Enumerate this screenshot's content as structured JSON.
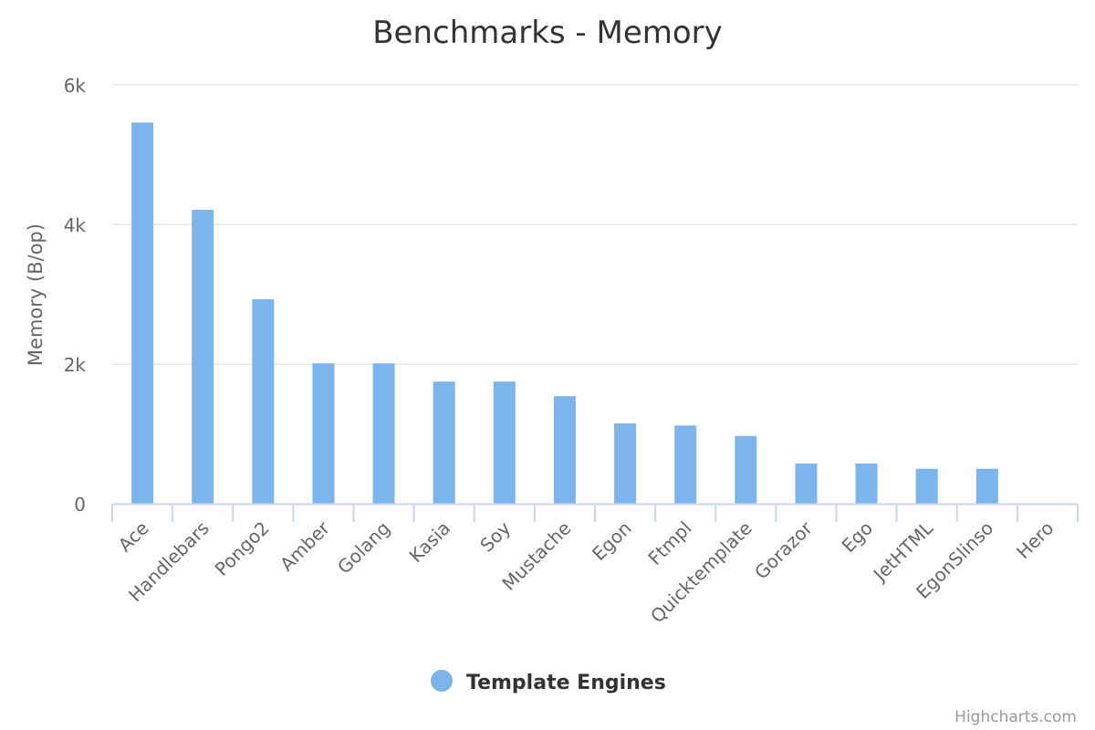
{
  "chart_data": {
    "type": "bar",
    "title": "Benchmarks - Memory",
    "xlabel": "",
    "ylabel": "Memory (B/op)",
    "ylim": [
      0,
      6000
    ],
    "yticks": [
      0,
      2000,
      4000,
      6000
    ],
    "ytick_labels": [
      "0",
      "2k",
      "4k",
      "6k"
    ],
    "grid": true,
    "legend_position": "bottom-center",
    "categories": [
      "Ace",
      "Handlebars",
      "Pongo2",
      "Amber",
      "Golang",
      "Kasia",
      "Soy",
      "Mustache",
      "Egon",
      "Ftmpl",
      "Quicktemplate",
      "Gorazor",
      "Ego",
      "JetHTML",
      "EgonSlinso",
      "Hero"
    ],
    "series": [
      {
        "name": "Template Engines",
        "color": "#7cb5ec",
        "values": [
          5460,
          4210,
          2930,
          2010,
          2010,
          1750,
          1750,
          1540,
          1150,
          1120,
          970,
          575,
          575,
          500,
          500,
          0
        ]
      }
    ],
    "credits": "Highcharts.com"
  }
}
